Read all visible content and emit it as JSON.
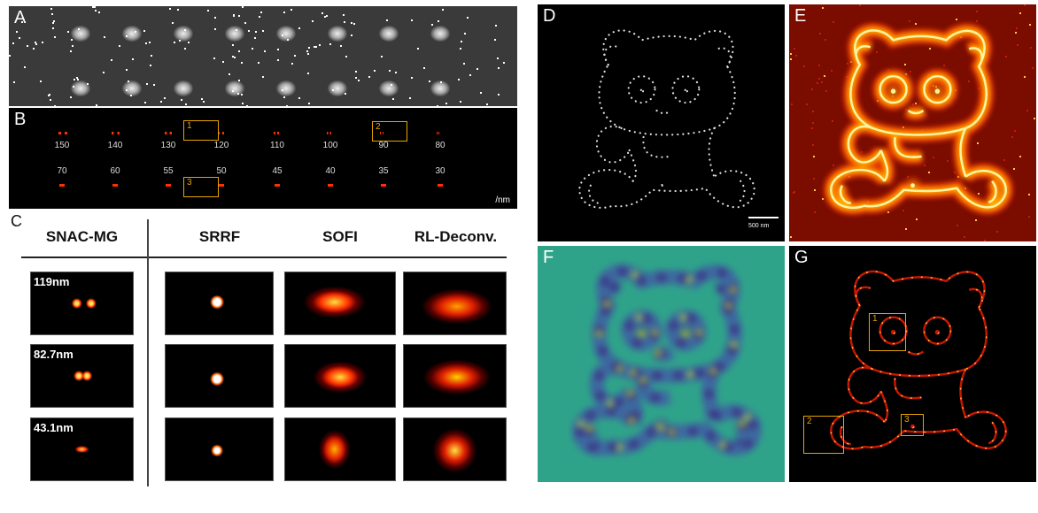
{
  "panels": {
    "A": {
      "letter": "A"
    },
    "B": {
      "letter": "B",
      "row1_labels": [
        "150",
        "140",
        "130",
        "120",
        "110",
        "100",
        "90",
        "80"
      ],
      "row2_labels": [
        "70",
        "60",
        "55",
        "50",
        "45",
        "40",
        "35",
        "30"
      ],
      "boxes": [
        "1",
        "2",
        "3"
      ],
      "unit": "/nm"
    },
    "C": {
      "letter": "C",
      "columns": [
        "SNAC-MG",
        "SRRF",
        "SOFI",
        "RL-Deconv."
      ],
      "row_labels": [
        "119nm",
        "82.7nm",
        "43.1nm"
      ]
    },
    "D": {
      "letter": "D",
      "scale_bar": "500 nm"
    },
    "E": {
      "letter": "E"
    },
    "F": {
      "letter": "F"
    },
    "G": {
      "letter": "G",
      "boxes": [
        "1",
        "2",
        "3"
      ]
    }
  },
  "colors": {
    "box_outline": "#e8a400",
    "hot_red": "#d42000",
    "viridis_bg": "#2fa38a"
  }
}
